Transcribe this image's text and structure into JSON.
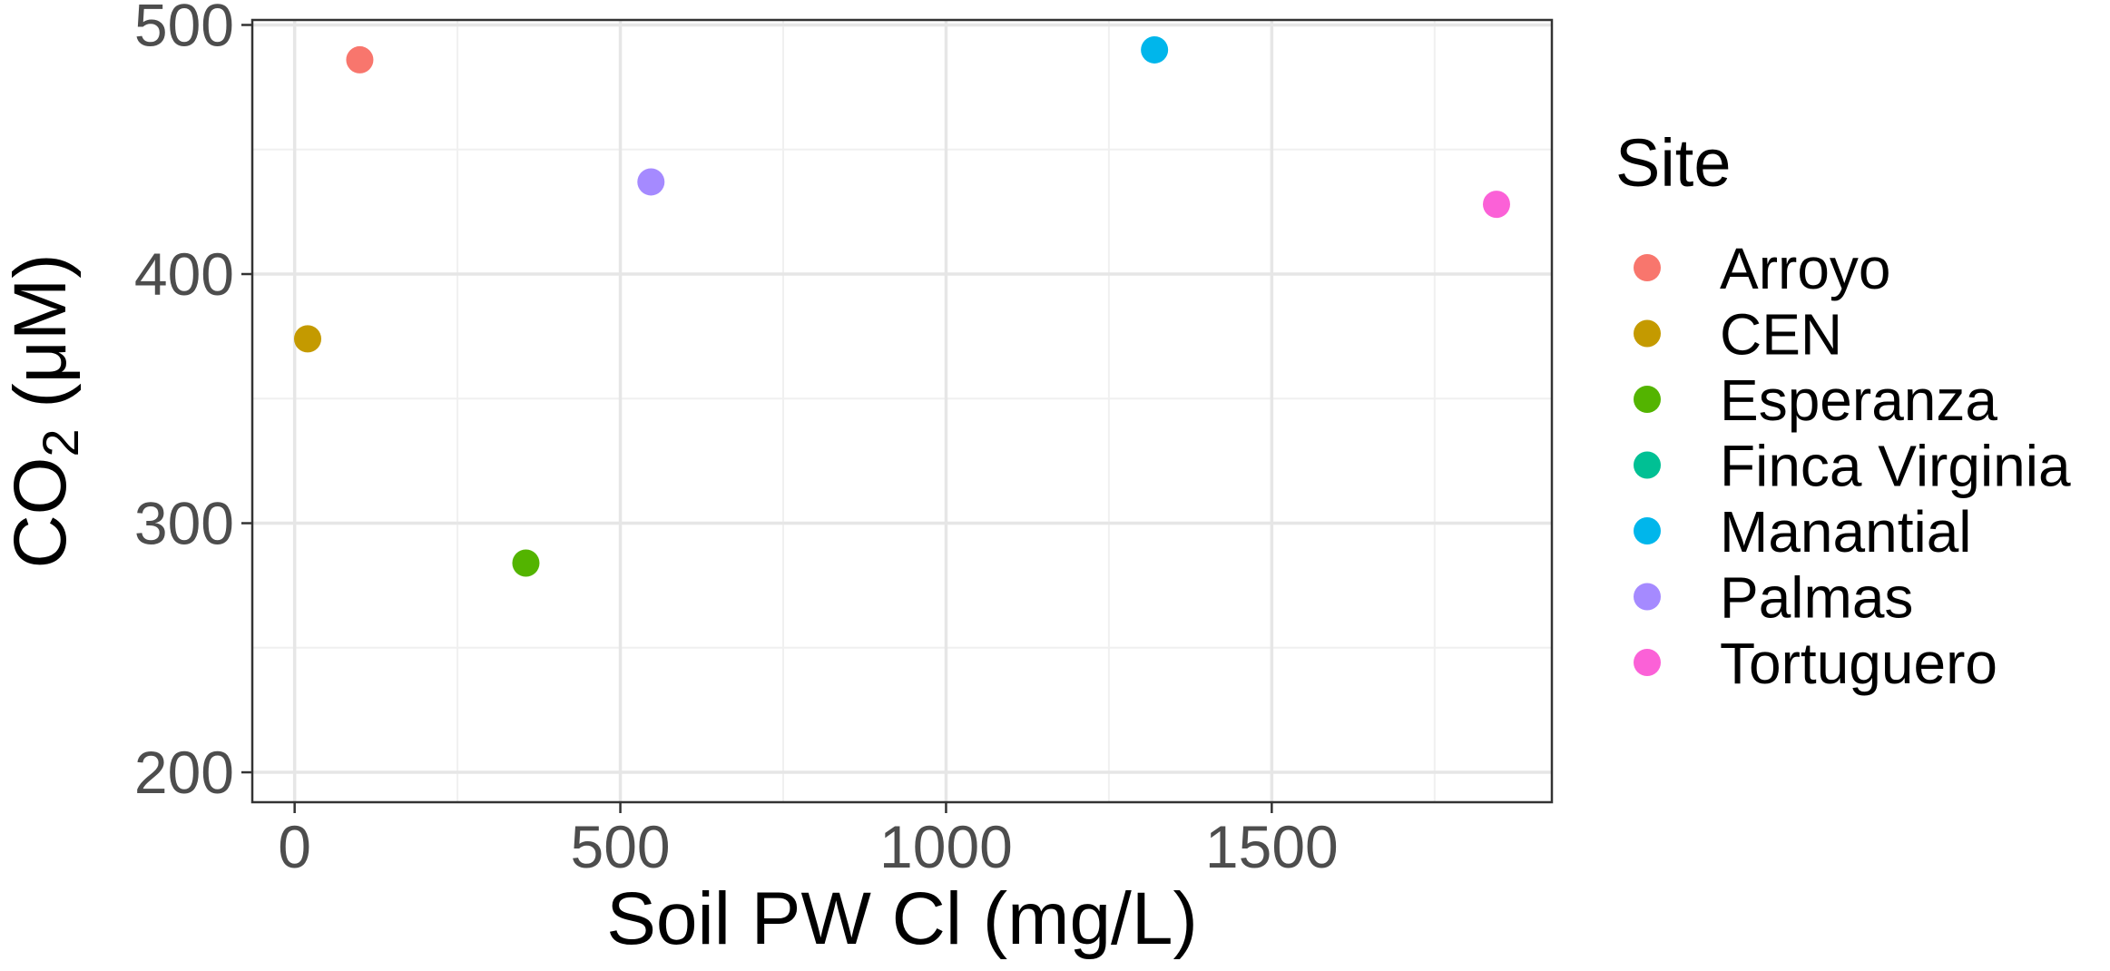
{
  "chart_data": {
    "type": "scatter",
    "title": "",
    "xlabel": "Soil PW Cl (mg/L)",
    "ylabel": {
      "prefix": "CO",
      "subscript": "2",
      "suffix": " (μM)"
    },
    "xlim": [
      -65,
      1930
    ],
    "ylim": [
      188,
      502
    ],
    "x_ticks": [
      0,
      500,
      1000,
      1500
    ],
    "x_tick_labels": [
      "0",
      "500",
      "1000",
      "1500"
    ],
    "y_ticks": [
      200,
      300,
      400,
      500
    ],
    "y_tick_labels": [
      "200",
      "300",
      "400",
      "500"
    ],
    "x_minor_grid": [
      250,
      750,
      1250,
      1750
    ],
    "y_minor_grid": [
      250,
      350,
      450
    ],
    "grid": true,
    "legend": {
      "title": "Site",
      "placement": "right"
    },
    "series": [
      {
        "name": "Arroyo",
        "color": "#F8766D",
        "points": [
          {
            "x": 100,
            "y": 486
          }
        ]
      },
      {
        "name": "CEN",
        "color": "#C49A00",
        "points": [
          {
            "x": 20,
            "y": 374
          }
        ]
      },
      {
        "name": "Esperanza",
        "color": "#53B400",
        "points": [
          {
            "x": 355,
            "y": 284
          }
        ]
      },
      {
        "name": "Finca Virginia",
        "color": "#00C094",
        "points": []
      },
      {
        "name": "Manantial",
        "color": "#00B6EB",
        "points": [
          {
            "x": 1320,
            "y": 490
          }
        ]
      },
      {
        "name": "Palmas",
        "color": "#A58AFF",
        "points": [
          {
            "x": 547,
            "y": 437
          }
        ]
      },
      {
        "name": "Tortuguero",
        "color": "#FB61D7",
        "points": [
          {
            "x": 1845,
            "y": 428
          }
        ]
      }
    ]
  }
}
